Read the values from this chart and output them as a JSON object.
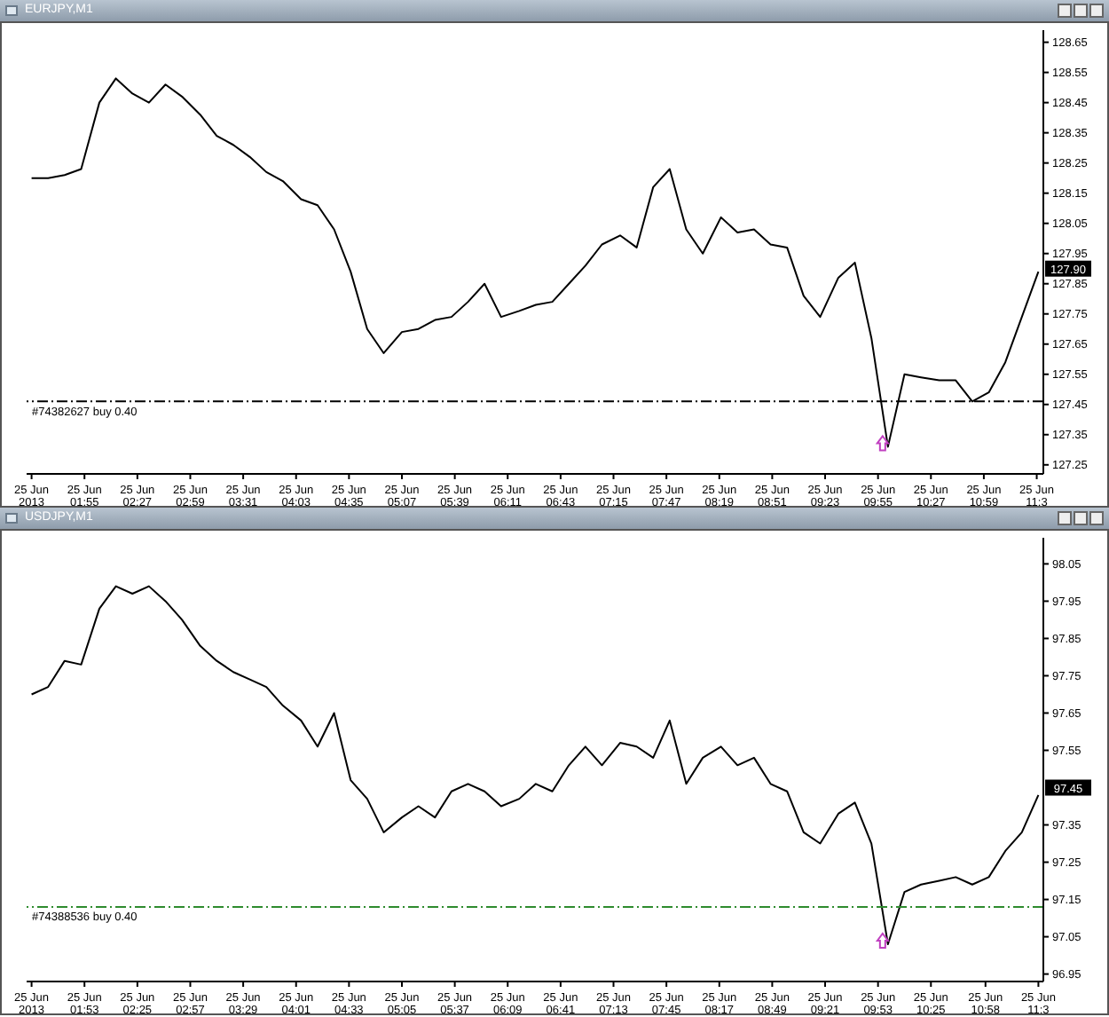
{
  "chart_data": [
    {
      "type": "line",
      "title": "EURJPY,M1",
      "marker": "none",
      "line_style": "solid",
      "x": [
        "2013-06-25T01:23",
        "2013-06-25T01:33",
        "2013-06-25T01:43",
        "2013-06-25T01:53",
        "2013-06-25T02:04",
        "2013-06-25T02:14",
        "2013-06-25T02:24",
        "2013-06-25T02:34",
        "2013-06-25T02:44",
        "2013-06-25T02:54",
        "2013-06-25T03:05",
        "2013-06-25T03:15",
        "2013-06-25T03:25",
        "2013-06-25T03:35",
        "2013-06-25T03:45",
        "2013-06-25T03:55",
        "2013-06-25T04:06",
        "2013-06-25T04:16",
        "2013-06-25T04:26",
        "2013-06-25T04:36",
        "2013-06-25T04:46",
        "2013-06-25T04:56",
        "2013-06-25T05:07",
        "2013-06-25T05:17",
        "2013-06-25T05:27",
        "2013-06-25T05:37",
        "2013-06-25T05:47",
        "2013-06-25T05:57",
        "2013-06-25T06:07",
        "2013-06-25T06:18",
        "2013-06-25T06:28",
        "2013-06-25T06:38",
        "2013-06-25T06:48",
        "2013-06-25T06:58",
        "2013-06-25T07:08",
        "2013-06-25T07:19",
        "2013-06-25T07:29",
        "2013-06-25T07:39",
        "2013-06-25T07:49",
        "2013-06-25T07:59",
        "2013-06-25T08:09",
        "2013-06-25T08:20",
        "2013-06-25T08:30",
        "2013-06-25T08:40",
        "2013-06-25T08:50",
        "2013-06-25T09:00",
        "2013-06-25T09:10",
        "2013-06-25T09:20",
        "2013-06-25T09:31",
        "2013-06-25T09:41",
        "2013-06-25T09:51",
        "2013-06-25T10:01",
        "2013-06-25T10:11",
        "2013-06-25T10:21",
        "2013-06-25T10:32",
        "2013-06-25T10:42",
        "2013-06-25T10:52",
        "2013-06-25T11:02",
        "2013-06-25T11:12",
        "2013-06-25T11:22",
        "2013-06-25T11:32"
      ],
      "series": [
        {
          "color": "#000000",
          "values": [
            128.2,
            128.2,
            128.21,
            128.23,
            128.45,
            128.53,
            128.48,
            128.45,
            128.51,
            128.47,
            128.41,
            128.34,
            128.31,
            128.27,
            128.22,
            128.19,
            128.13,
            128.11,
            128.03,
            127.89,
            127.7,
            127.62,
            127.69,
            127.7,
            127.73,
            127.74,
            127.79,
            127.85,
            127.74,
            127.76,
            127.78,
            127.79,
            127.85,
            127.91,
            127.98,
            128.01,
            127.97,
            128.17,
            128.23,
            128.03,
            127.95,
            128.07,
            128.02,
            128.03,
            127.98,
            127.97,
            127.81,
            127.74,
            127.87,
            127.92,
            127.67,
            127.31,
            127.55,
            127.54,
            127.53,
            127.53,
            127.46,
            127.49,
            127.59,
            127.74,
            127.89
          ]
        }
      ],
      "xlim": [
        "2013-06-25T01:20",
        "2013-06-25T11:35"
      ],
      "ylim": [
        127.22,
        128.69
      ],
      "xticks": [
        {
          "value": "2013-06-25T01:23",
          "label": "25 Jun 2013"
        },
        {
          "value": "2013-06-25T01:55",
          "label": "25 Jun 01:55"
        },
        {
          "value": "2013-06-25T02:27",
          "label": "25 Jun 02:27"
        },
        {
          "value": "2013-06-25T02:59",
          "label": "25 Jun 02:59"
        },
        {
          "value": "2013-06-25T03:31",
          "label": "25 Jun 03:31"
        },
        {
          "value": "2013-06-25T04:03",
          "label": "25 Jun 04:03"
        },
        {
          "value": "2013-06-25T04:35",
          "label": "25 Jun 04:35"
        },
        {
          "value": "2013-06-25T05:07",
          "label": "25 Jun 05:07"
        },
        {
          "value": "2013-06-25T05:39",
          "label": "25 Jun 05:39"
        },
        {
          "value": "2013-06-25T06:11",
          "label": "25 Jun 06:11"
        },
        {
          "value": "2013-06-25T06:43",
          "label": "25 Jun 06:43"
        },
        {
          "value": "2013-06-25T07:15",
          "label": "25 Jun 07:15"
        },
        {
          "value": "2013-06-25T07:47",
          "label": "25 Jun 07:47"
        },
        {
          "value": "2013-06-25T08:19",
          "label": "25 Jun 08:19"
        },
        {
          "value": "2013-06-25T08:51",
          "label": "25 Jun 08:51"
        },
        {
          "value": "2013-06-25T09:23",
          "label": "25 Jun 09:23"
        },
        {
          "value": "2013-06-25T09:55",
          "label": "25 Jun 09:55"
        },
        {
          "value": "2013-06-25T10:27",
          "label": "25 Jun 10:27"
        },
        {
          "value": "2013-06-25T10:59",
          "label": "25 Jun 10:59"
        },
        {
          "value": "2013-06-25T11:31",
          "label": "25 Jun 11:3"
        }
      ],
      "yticks": [
        127.25,
        127.35,
        127.45,
        127.55,
        127.65,
        127.75,
        127.85,
        127.95,
        128.05,
        128.15,
        128.25,
        128.35,
        128.45,
        128.55,
        128.65
      ],
      "ref_lines": [
        {
          "axis": "y",
          "value": 127.46,
          "label": "#74382627 buy 0.40",
          "color": "#000000",
          "line_style": "dashdot"
        }
      ],
      "annotations": [
        {
          "text": "127.90",
          "y": 127.9
        }
      ]
    },
    {
      "type": "line",
      "title": "USDJPY,M1",
      "marker": "none",
      "line_style": "solid",
      "x": [
        "2013-06-25T01:21",
        "2013-06-25T01:31",
        "2013-06-25T01:41",
        "2013-06-25T01:51",
        "2013-06-25T02:02",
        "2013-06-25T02:12",
        "2013-06-25T02:22",
        "2013-06-25T02:32",
        "2013-06-25T02:42",
        "2013-06-25T02:52",
        "2013-06-25T03:03",
        "2013-06-25T03:13",
        "2013-06-25T03:23",
        "2013-06-25T03:33",
        "2013-06-25T03:43",
        "2013-06-25T03:53",
        "2013-06-25T04:04",
        "2013-06-25T04:14",
        "2013-06-25T04:24",
        "2013-06-25T04:34",
        "2013-06-25T04:44",
        "2013-06-25T04:54",
        "2013-06-25T05:05",
        "2013-06-25T05:15",
        "2013-06-25T05:25",
        "2013-06-25T05:35",
        "2013-06-25T05:45",
        "2013-06-25T05:55",
        "2013-06-25T06:05",
        "2013-06-25T06:16",
        "2013-06-25T06:26",
        "2013-06-25T06:36",
        "2013-06-25T06:46",
        "2013-06-25T06:56",
        "2013-06-25T07:06",
        "2013-06-25T07:17",
        "2013-06-25T07:27",
        "2013-06-25T07:37",
        "2013-06-25T07:47",
        "2013-06-25T07:57",
        "2013-06-25T08:07",
        "2013-06-25T08:18",
        "2013-06-25T08:28",
        "2013-06-25T08:38",
        "2013-06-25T08:48",
        "2013-06-25T08:58",
        "2013-06-25T09:08",
        "2013-06-25T09:18",
        "2013-06-25T09:29",
        "2013-06-25T09:39",
        "2013-06-25T09:49",
        "2013-06-25T09:59",
        "2013-06-25T10:09",
        "2013-06-25T10:19",
        "2013-06-25T10:30",
        "2013-06-25T10:40",
        "2013-06-25T10:50",
        "2013-06-25T11:00",
        "2013-06-25T11:10",
        "2013-06-25T11:20",
        "2013-06-25T11:30"
      ],
      "series": [
        {
          "color": "#000000",
          "values": [
            97.7,
            97.72,
            97.79,
            97.78,
            97.93,
            97.99,
            97.97,
            97.99,
            97.95,
            97.9,
            97.83,
            97.79,
            97.76,
            97.74,
            97.72,
            97.67,
            97.63,
            97.56,
            97.65,
            97.47,
            97.42,
            97.33,
            97.37,
            97.4,
            97.37,
            97.44,
            97.46,
            97.44,
            97.4,
            97.42,
            97.46,
            97.44,
            97.51,
            97.56,
            97.51,
            97.57,
            97.56,
            97.53,
            97.63,
            97.46,
            97.53,
            97.56,
            97.51,
            97.53,
            97.46,
            97.44,
            97.33,
            97.3,
            97.38,
            97.41,
            97.3,
            97.03,
            97.17,
            97.19,
            97.2,
            97.21,
            97.19,
            97.21,
            97.28,
            97.33,
            97.43
          ]
        }
      ],
      "xlim": [
        "2013-06-25T01:18",
        "2013-06-25T11:33"
      ],
      "ylim": [
        96.93,
        98.12
      ],
      "xticks": [
        {
          "value": "2013-06-25T01:21",
          "label": "25 Jun 2013"
        },
        {
          "value": "2013-06-25T01:53",
          "label": "25 Jun 01:53"
        },
        {
          "value": "2013-06-25T02:25",
          "label": "25 Jun 02:25"
        },
        {
          "value": "2013-06-25T02:57",
          "label": "25 Jun 02:57"
        },
        {
          "value": "2013-06-25T03:29",
          "label": "25 Jun 03:29"
        },
        {
          "value": "2013-06-25T04:01",
          "label": "25 Jun 04:01"
        },
        {
          "value": "2013-06-25T04:33",
          "label": "25 Jun 04:33"
        },
        {
          "value": "2013-06-25T05:05",
          "label": "25 Jun 05:05"
        },
        {
          "value": "2013-06-25T05:37",
          "label": "25 Jun 05:37"
        },
        {
          "value": "2013-06-25T06:09",
          "label": "25 Jun 06:09"
        },
        {
          "value": "2013-06-25T06:41",
          "label": "25 Jun 06:41"
        },
        {
          "value": "2013-06-25T07:13",
          "label": "25 Jun 07:13"
        },
        {
          "value": "2013-06-25T07:45",
          "label": "25 Jun 07:45"
        },
        {
          "value": "2013-06-25T08:17",
          "label": "25 Jun 08:17"
        },
        {
          "value": "2013-06-25T08:49",
          "label": "25 Jun 08:49"
        },
        {
          "value": "2013-06-25T09:21",
          "label": "25 Jun 09:21"
        },
        {
          "value": "2013-06-25T09:53",
          "label": "25 Jun 09:53"
        },
        {
          "value": "2013-06-25T10:25",
          "label": "25 Jun 10:25"
        },
        {
          "value": "2013-06-25T10:58",
          "label": "25 Jun 10:58"
        },
        {
          "value": "2013-06-25T11:30",
          "label": "25 Jun 11:3"
        }
      ],
      "yticks": [
        96.95,
        97.05,
        97.15,
        97.25,
        97.35,
        97.55,
        97.65,
        97.75,
        97.85,
        97.95,
        98.05
      ],
      "ref_lines": [
        {
          "axis": "y",
          "value": 97.13,
          "label": "#74388536 buy 0.40",
          "color": "#2e8b2e",
          "line_style": "dashdot"
        }
      ],
      "annotations": [
        {
          "text": "97.45",
          "y": 97.45
        }
      ]
    }
  ]
}
